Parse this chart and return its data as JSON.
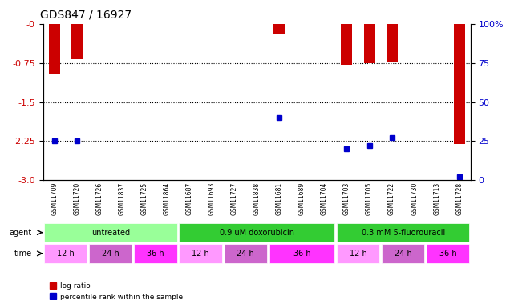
{
  "title": "GDS847 / 16927",
  "samples": [
    "GSM11709",
    "GSM11720",
    "GSM11726",
    "GSM11837",
    "GSM11725",
    "GSM11864",
    "GSM11687",
    "GSM11693",
    "GSM11727",
    "GSM11838",
    "GSM11681",
    "GSM11689",
    "GSM11704",
    "GSM11703",
    "GSM11705",
    "GSM11722",
    "GSM11730",
    "GSM11713",
    "GSM11728"
  ],
  "log_ratios": [
    -0.95,
    -0.68,
    0,
    0,
    0,
    0,
    0,
    0,
    0,
    0,
    -0.18,
    0,
    0,
    -0.78,
    -0.75,
    -0.72,
    0,
    0,
    -2.3
  ],
  "percentile_ranks": [
    25,
    25,
    0,
    0,
    0,
    0,
    0,
    0,
    0,
    0,
    40,
    0,
    0,
    20,
    22,
    27,
    0,
    0,
    2
  ],
  "ylim_left": [
    -3,
    0
  ],
  "ylim_right": [
    0,
    100
  ],
  "yticks_left": [
    0,
    -0.75,
    -1.5,
    -2.25,
    -3
  ],
  "yticks_right": [
    0,
    25,
    50,
    75,
    100
  ],
  "agent_groups": [
    {
      "label": "untreated",
      "start": 0,
      "end": 6,
      "color": "#99ff99"
    },
    {
      "label": "0.9 uM doxorubicin",
      "start": 6,
      "end": 13,
      "color": "#33cc33"
    },
    {
      "label": "0.3 mM 5-fluorouracil",
      "start": 13,
      "end": 19,
      "color": "#33cc33"
    }
  ],
  "time_groups": [
    {
      "label": "12 h",
      "start": 0,
      "end": 2,
      "color": "#ff99ff"
    },
    {
      "label": "24 h",
      "start": 2,
      "end": 4,
      "color": "#cc66cc"
    },
    {
      "label": "36 h",
      "start": 4,
      "end": 6,
      "color": "#ff33ff"
    },
    {
      "label": "12 h",
      "start": 6,
      "end": 8,
      "color": "#ff99ff"
    },
    {
      "label": "24 h",
      "start": 8,
      "end": 10,
      "color": "#cc66cc"
    },
    {
      "label": "36 h",
      "start": 10,
      "end": 13,
      "color": "#ff33ff"
    },
    {
      "label": "12 h",
      "start": 13,
      "end": 15,
      "color": "#ff99ff"
    },
    {
      "label": "24 h",
      "start": 15,
      "end": 17,
      "color": "#cc66cc"
    },
    {
      "label": "36 h",
      "start": 17,
      "end": 19,
      "color": "#ff33ff"
    }
  ],
  "bar_color": "#cc0000",
  "dot_color": "#0000cc",
  "bg_color": "#ffffff",
  "axis_bg": "#e8e8e8",
  "label_color_left": "#cc0000",
  "label_color_right": "#0000cc"
}
